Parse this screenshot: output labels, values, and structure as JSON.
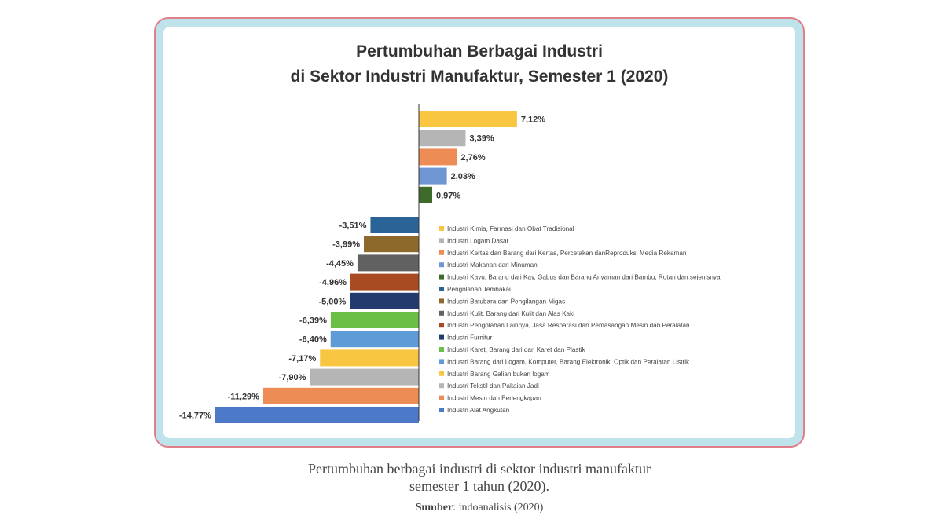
{
  "chart_data": {
    "type": "bar",
    "orientation": "horizontal",
    "title": [
      "Pertumbuhan Berbagai Industri",
      "di Sektor Industri Manufaktur, Semester 1 (2020)"
    ],
    "xlabel": "",
    "ylabel": "",
    "xlim": [
      -14.77,
      7.12
    ],
    "grid": false,
    "legend_position": "right",
    "bars": [
      {
        "value": 7.12,
        "label": "7,12%",
        "color": "#f9c642",
        "legend": "Industri Kimia, Farmasi dan Obat Tradisional"
      },
      {
        "value": 3.39,
        "label": "3,39%",
        "color": "#b5b5b5",
        "legend": "Industri Logam Dasar"
      },
      {
        "value": 2.76,
        "label": "2,76%",
        "color": "#ee8c56",
        "legend": "Industri Kertas dan Barang dari Kertas, Percetakan danReproduksi Media Rekaman"
      },
      {
        "value": 2.03,
        "label": "2,03%",
        "color": "#6f96d2",
        "legend": "Industri Makanan dan Minuman"
      },
      {
        "value": 0.97,
        "label": "0,97%",
        "color": "#3e6b2c",
        "legend": "Industri Kayu, Barang dari Kay, Gabus dan Barang Anyaman dari Bambu, Rotan dan sejenisnya"
      },
      {
        "value": -3.51,
        "label": "-3,51%",
        "color": "#2a6496",
        "legend": "Pengolahan Tembakau"
      },
      {
        "value": -3.99,
        "label": "-3,99%",
        "color": "#8d6a2b",
        "legend": "Industri Batubara dan Pengilangan Migas"
      },
      {
        "value": -4.45,
        "label": "-4,45%",
        "color": "#616161",
        "legend": "Industri Kulit, Barang dari Kulit dan Alas Kaki"
      },
      {
        "value": -4.96,
        "label": "-4,96%",
        "color": "#a84a22",
        "legend": "Industri Pengolahan Lainnya, Jasa Resparasi dan Pemasangan Mesin dan Peralatan"
      },
      {
        "value": -5.0,
        "label": "-5,00%",
        "color": "#233a6e",
        "legend": "Industri Furnitur"
      },
      {
        "value": -6.39,
        "label": "-6,39%",
        "color": "#6cbf45",
        "legend": "Industri Karet, Barang dari dari Karet dan Plastik"
      },
      {
        "value": -6.4,
        "label": "-6,40%",
        "color": "#5f9bd6",
        "legend": "Industri Barang dari Logam, Komputer, Barang Elektronik, Optik dan Peralatan Listrik"
      },
      {
        "value": -7.17,
        "label": "-7,17%",
        "color": "#f9c642",
        "legend": "Industri Barang Galian bukan logam"
      },
      {
        "value": -7.9,
        "label": "-7,90%",
        "color": "#b5b5b5",
        "legend": "Industri Tekstil dan Pakaian Jadi"
      },
      {
        "value": -11.29,
        "label": "-11,29%",
        "color": "#ee8c56",
        "legend": "Industri Mesin dan Perlengkapan"
      },
      {
        "value": -14.77,
        "label": "-14,77%",
        "color": "#4d79c9",
        "legend": "Industri Alat Angkutan"
      }
    ]
  },
  "caption": {
    "line1": "Pertumbuhan berbagai industri di sektor industri manufaktur",
    "line2": "semester 1 tahun (2020)."
  },
  "source": {
    "label": "Sumber",
    "text": "indoanalisis (2020)"
  },
  "colors": {
    "frame_border": "#e07f8a",
    "frame_fill": "#bfe3ea"
  }
}
